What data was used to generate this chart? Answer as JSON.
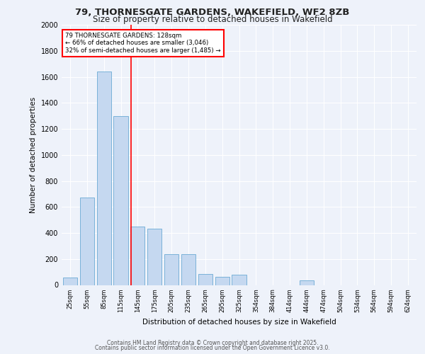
{
  "title_line1": "79, THORNESGATE GARDENS, WAKEFIELD, WF2 8ZB",
  "title_line2": "Size of property relative to detached houses in Wakefield",
  "xlabel": "Distribution of detached houses by size in Wakefield",
  "ylabel": "Number of detached properties",
  "categories": [
    "25sqm",
    "55sqm",
    "85sqm",
    "115sqm",
    "145sqm",
    "175sqm",
    "205sqm",
    "235sqm",
    "265sqm",
    "295sqm",
    "325sqm",
    "354sqm",
    "384sqm",
    "414sqm",
    "444sqm",
    "474sqm",
    "504sqm",
    "534sqm",
    "564sqm",
    "594sqm",
    "624sqm"
  ],
  "values": [
    55,
    670,
    1640,
    1300,
    450,
    430,
    235,
    235,
    85,
    65,
    80,
    0,
    0,
    0,
    35,
    0,
    0,
    0,
    0,
    0,
    0
  ],
  "bar_color": "#c5d8f0",
  "bar_edge_color": "#6aaad4",
  "red_line_x": 3.62,
  "annotation_text": "79 THORNESGATE GARDENS: 128sqm\n← 66% of detached houses are smaller (3,046)\n32% of semi-detached houses are larger (1,485) →",
  "ylim": [
    0,
    2000
  ],
  "yticks": [
    0,
    200,
    400,
    600,
    800,
    1000,
    1200,
    1400,
    1600,
    1800,
    2000
  ],
  "footer_line1": "Contains HM Land Registry data © Crown copyright and database right 2025.",
  "footer_line2": "Contains public sector information licensed under the Open Government Licence v3.0.",
  "background_color": "#eef2fa"
}
